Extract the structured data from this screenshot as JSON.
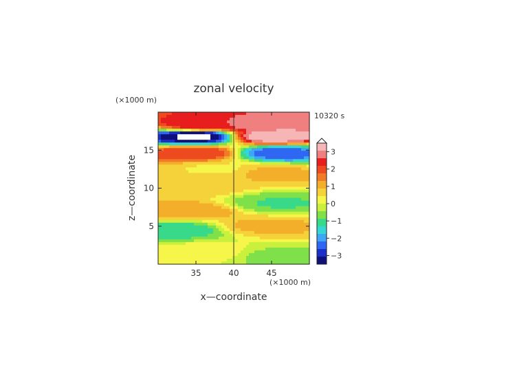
{
  "chart_data": {
    "type": "heatmap",
    "title": "zonal velocity",
    "xlabel": "x—coordinate",
    "ylabel": "z—coordinate",
    "x_unit": "(×1000 m)",
    "y_unit": "(×1000 m)",
    "time_label": "10320 s",
    "xlim": [
      30,
      50
    ],
    "ylim": [
      0,
      20
    ],
    "x_ticks": [
      35,
      40,
      45
    ],
    "y_ticks": [
      5,
      10,
      15
    ],
    "colorbar": {
      "ticks": [
        "3",
        "2",
        "1",
        "0",
        "−1",
        "−2",
        "−3"
      ],
      "range": [
        -3.5,
        3.5
      ],
      "extend": "max",
      "colors": [
        "#10107a",
        "#1c2fc9",
        "#2f66f2",
        "#3fa5f5",
        "#35d6d3",
        "#39d98a",
        "#7fe04a",
        "#c8f03d",
        "#f6f64a",
        "#f5d23a",
        "#f3ae2a",
        "#f07a25",
        "#ee4a20",
        "#e81d1d",
        "#f07f7f",
        "#f6b6b6"
      ]
    },
    "field": {
      "description_rows_top_to_bottom": "zonal velocity sampled on a 40 x 20 grid (x from 30 to 50, z from 20 to 0)",
      "source": "digitized",
      "sample_points": [
        {
          "x": 36,
          "z": 18.3,
          "value": 2.6
        },
        {
          "x": 44,
          "z": 18.3,
          "value": 3.0
        },
        {
          "x": 35,
          "z": 16.8,
          "value": -3.6
        },
        {
          "x": 45,
          "z": 16.8,
          "value": 3.4
        },
        {
          "x": 35,
          "z": 14.6,
          "value": 2.1
        },
        {
          "x": 46,
          "z": 14.6,
          "value": -2.4
        },
        {
          "x": 38,
          "z": 12.5,
          "value": 0.4
        },
        {
          "x": 45,
          "z": 12.0,
          "value": 1.0
        },
        {
          "x": 34,
          "z": 10.2,
          "value": 0.8
        },
        {
          "x": 46,
          "z": 8.0,
          "value": -0.9
        },
        {
          "x": 34,
          "z": 7.0,
          "value": 1.2
        },
        {
          "x": 44,
          "z": 5.0,
          "value": 1.0
        },
        {
          "x": 33,
          "z": 4.5,
          "value": -1.1
        },
        {
          "x": 36,
          "z": 1.5,
          "value": 0.3
        },
        {
          "x": 46,
          "z": 1.0,
          "value": -0.6
        }
      ]
    }
  }
}
